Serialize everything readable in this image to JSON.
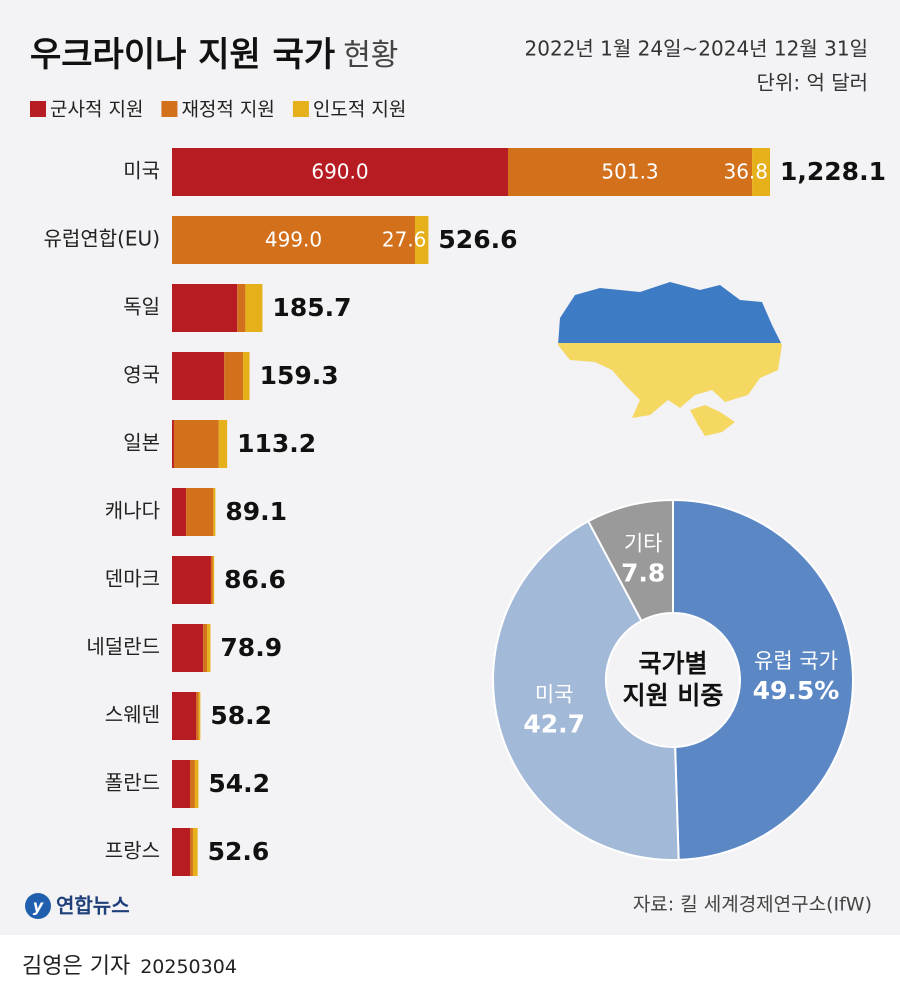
{
  "header": {
    "title": "우크라이나 지원 국가",
    "title_light": "현황",
    "period": "2022년 1월 24일~2024년 12월 31일",
    "unit": "단위: 억 달러"
  },
  "chart_data": [
    {
      "type": "bar",
      "orientation": "horizontal",
      "stacked": true,
      "categories": [
        "미국",
        "유럽연합(EU)",
        "독일",
        "영국",
        "일본",
        "캐나다",
        "덴마크",
        "네덜란드",
        "스웨덴",
        "폴란드",
        "프랑스"
      ],
      "series": [
        {
          "name": "군사적 지원",
          "color": "#b81c23",
          "values": [
            690.0,
            0,
            134,
            107,
            4,
            29,
            80,
            64,
            50,
            37,
            37
          ],
          "value_labels": [
            "690.0",
            null,
            null,
            null,
            null,
            null,
            null,
            null,
            null,
            null,
            null
          ]
        },
        {
          "name": "재정적 지원",
          "color": "#d2701c",
          "values": [
            501.3,
            499.0,
            16.7,
            39,
            92,
            56,
            4,
            8,
            5,
            10,
            6
          ],
          "value_labels": [
            "501.3",
            "499.0",
            null,
            null,
            null,
            null,
            null,
            null,
            null,
            null,
            null
          ]
        },
        {
          "name": "인도적 지원",
          "color": "#e6b01b",
          "values": [
            36.8,
            27.6,
            35,
            13.3,
            17.2,
            4.1,
            2.6,
            6.9,
            3.2,
            7.2,
            9.6
          ],
          "value_labels": [
            "36.8",
            "27.6",
            null,
            null,
            null,
            null,
            null,
            null,
            null,
            null,
            null
          ]
        }
      ],
      "totals": [
        1228.1,
        526.6,
        185.7,
        159.3,
        113.2,
        89.1,
        86.6,
        78.9,
        58.2,
        54.2,
        52.6
      ],
      "total_labels": [
        "1,228.1",
        "526.6",
        "185.7",
        "159.3",
        "113.2",
        "89.1",
        "86.6",
        "78.9",
        "58.2",
        "54.2",
        "52.6"
      ]
    },
    {
      "type": "donut",
      "center_title": [
        "국가별",
        "지원 비중"
      ],
      "categories": [
        "유럽 국가",
        "미국",
        "기타"
      ],
      "values": [
        49.5,
        42.7,
        7.8
      ],
      "value_labels": [
        "49.5%",
        "42.7",
        "7.8"
      ],
      "colors": [
        "#5b87c5",
        "#a3b9d8",
        "#9a9a9a"
      ]
    }
  ],
  "footer": {
    "logo": "연합뉴스",
    "source": "자료: 킬 세계경제연구소(IfW)",
    "reporter": "김영은 기자",
    "date": "20250304"
  }
}
